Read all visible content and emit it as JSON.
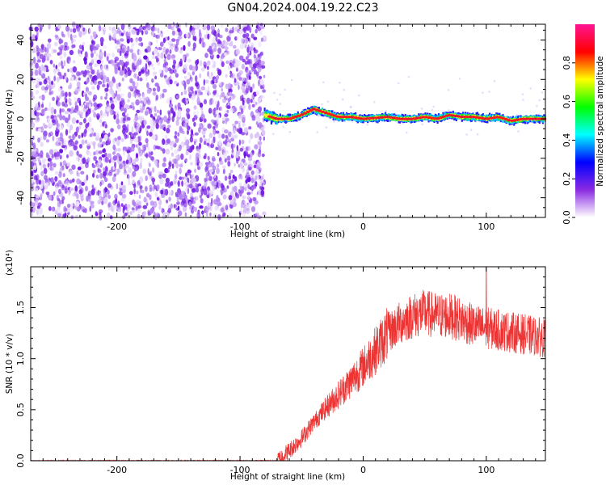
{
  "title": "GN04.2024.004.19.22.C23",
  "chart_data": [
    {
      "type": "heatmap",
      "xlabel": "Height of straight line (km)",
      "ylabel": "Frequency (Hz)",
      "xlim": [
        -270,
        148
      ],
      "ylim": [
        -50,
        48
      ],
      "xticks": [
        -200,
        -100,
        0,
        100
      ],
      "yticks": [
        -40,
        -20,
        0,
        20,
        40
      ],
      "colorbar": {
        "label": "Normalized spectral amplitude",
        "range": [
          0,
          1
        ],
        "ticks": [
          "0.0",
          "0.2",
          "0.4",
          "0.6",
          "0.8"
        ],
        "colors": [
          "#ffffff",
          "#8a2be2",
          "#0000ff",
          "#00ffff",
          "#00ff00",
          "#ffff00",
          "#ff0000",
          "#ff1493"
        ]
      },
      "noise_region": {
        "x": [
          -270,
          -80
        ],
        "y": [
          -50,
          48
        ]
      },
      "signal_ridge": {
        "x": [
          -80,
          -70,
          -60,
          -50,
          -40,
          -30,
          -20,
          -10,
          0,
          10,
          20,
          30,
          40,
          50,
          60,
          70,
          80,
          90,
          100,
          110,
          120,
          130,
          140,
          148
        ],
        "y": [
          2,
          0,
          0,
          2,
          5,
          3,
          1,
          1,
          0,
          0.5,
          1,
          0,
          0,
          1,
          0,
          2,
          1,
          1,
          0,
          1,
          -1,
          0,
          0,
          0
        ]
      }
    },
    {
      "type": "line",
      "xlabel": "Height of straight line (km)",
      "ylabel": "SNR (10 * v/v)",
      "ymultiplier": "(x10⁴)",
      "xlim": [
        -270,
        148
      ],
      "ylim": [
        0,
        1.9
      ],
      "xticks": [
        -200,
        -100,
        0,
        100
      ],
      "yticks": [
        "0.0",
        "0.5",
        "1.0",
        "1.5"
      ],
      "color": "#ee3333",
      "envelope": {
        "x": [
          -270,
          -70,
          -60,
          -50,
          -40,
          -30,
          -20,
          -10,
          0,
          10,
          20,
          30,
          40,
          50,
          60,
          70,
          80,
          90,
          100,
          110,
          120,
          130,
          140,
          148
        ],
        "y": [
          0.0,
          0.0,
          0.1,
          0.22,
          0.38,
          0.52,
          0.65,
          0.78,
          0.92,
          1.08,
          1.25,
          1.35,
          1.42,
          1.45,
          1.42,
          1.42,
          1.38,
          1.32,
          1.3,
          1.28,
          1.26,
          1.24,
          1.22,
          1.2
        ]
      },
      "peak": {
        "x": 100,
        "y": 1.9
      }
    }
  ]
}
